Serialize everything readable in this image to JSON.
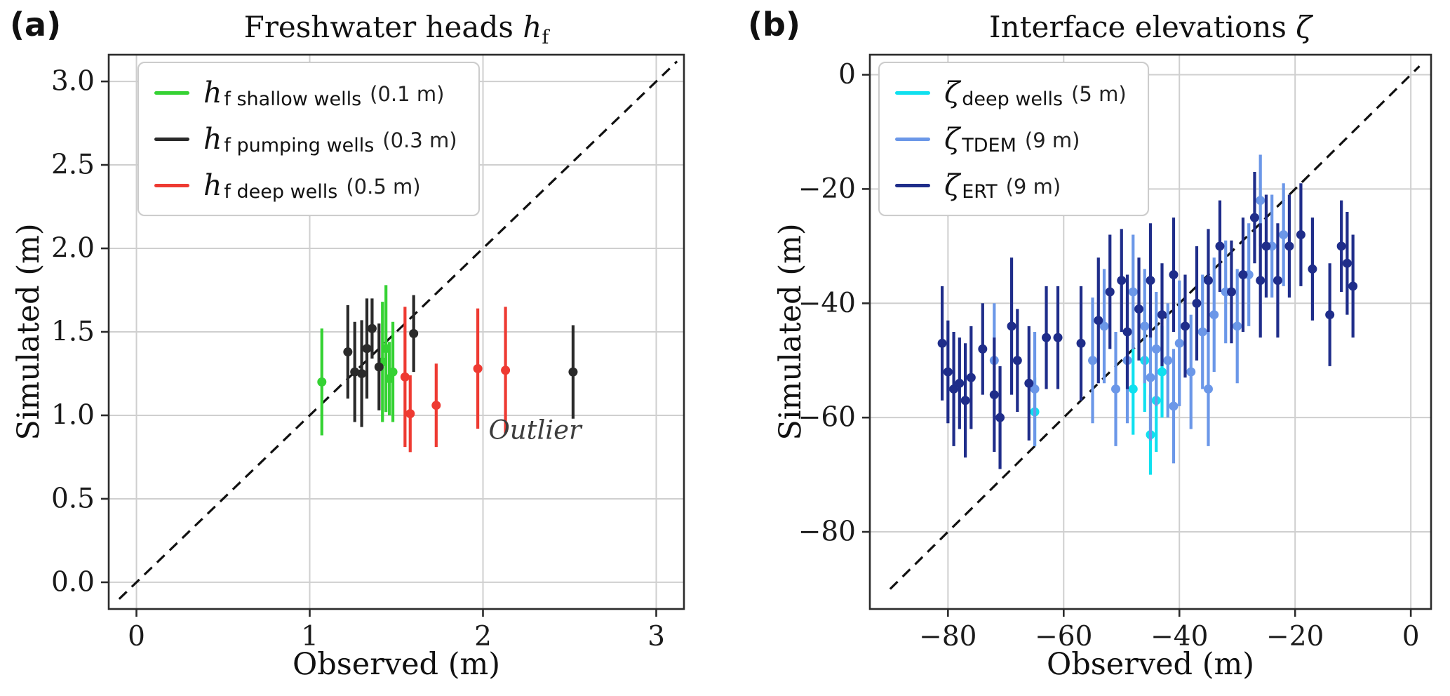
{
  "panels": [
    {
      "label": "(a)"
    },
    {
      "label": "(b)"
    }
  ],
  "chart_data": [
    {
      "type": "scatter",
      "title": "Freshwater heads h_f",
      "title_prefix": "Freshwater heads ",
      "title_symbol": "h",
      "title_sub": "f",
      "xlabel": "Observed (m)",
      "ylabel": "Simulated (m)",
      "xlim": [
        -0.16,
        3.16
      ],
      "ylim": [
        -0.16,
        3.16
      ],
      "one_to_one": [
        -0.1,
        3.12
      ],
      "grid": true,
      "legend_position": "upper-left",
      "xticks": [
        {
          "v": 0,
          "label": "0"
        },
        {
          "v": 1,
          "label": "1"
        },
        {
          "v": 2,
          "label": "2"
        },
        {
          "v": 3,
          "label": "3"
        }
      ],
      "yticks": [
        {
          "v": 0,
          "label": "0.0"
        },
        {
          "v": 0.5,
          "label": "0.5"
        },
        {
          "v": 1,
          "label": "1.0"
        },
        {
          "v": 1.5,
          "label": "1.5"
        },
        {
          "v": 2,
          "label": "2.0"
        },
        {
          "v": 2.5,
          "label": "2.5"
        },
        {
          "v": 3,
          "label": "3.0"
        }
      ],
      "annotation": {
        "text": "Outlier",
        "x": 2.3,
        "y": 0.86
      },
      "series": [
        {
          "name": "h_f shallow wells",
          "symbol": "h",
          "sub": "f shallow wells",
          "suffix": "(0.1 m)",
          "color": "#35d233",
          "points": [
            [
              1.07,
              1.2,
              0.32
            ],
            [
              1.42,
              1.32,
              0.36
            ],
            [
              1.44,
              1.4,
              0.38
            ],
            [
              1.46,
              1.22,
              0.22
            ],
            [
              1.48,
              1.26,
              0.3
            ]
          ]
        },
        {
          "name": "h_f pumping wells",
          "symbol": "h",
          "sub": "f pumping wells",
          "suffix": "(0.3 m)",
          "color": "#2a2a2a",
          "points": [
            [
              1.22,
              1.38,
              0.28
            ],
            [
              1.26,
              1.26,
              0.3
            ],
            [
              1.3,
              1.25,
              0.32
            ],
            [
              1.33,
              1.4,
              0.3
            ],
            [
              1.36,
              1.52,
              0.18
            ],
            [
              1.4,
              1.29,
              0.26
            ],
            [
              1.6,
              1.49,
              0.23
            ],
            [
              2.52,
              1.26,
              0.28
            ]
          ]
        },
        {
          "name": "h_f deep wells",
          "symbol": "h",
          "sub": "f deep wells",
          "suffix": "(0.5 m)",
          "color": "#ee3a32",
          "points": [
            [
              1.55,
              1.23,
              0.42
            ],
            [
              1.58,
              1.01,
              0.23
            ],
            [
              1.73,
              1.06,
              0.25
            ],
            [
              1.97,
              1.28,
              0.36
            ],
            [
              2.13,
              1.27,
              0.38
            ]
          ]
        }
      ]
    },
    {
      "type": "scatter",
      "title": "Interface elevations ζ",
      "title_prefix": "Interface elevations ",
      "title_symbol": "ζ",
      "title_sub": "",
      "xlabel": "Observed (m)",
      "ylabel": "Simulated (m)",
      "xlim": [
        -93.5,
        3.5
      ],
      "ylim": [
        -93.5,
        3.5
      ],
      "one_to_one": [
        -90,
        1.5
      ],
      "grid": true,
      "legend_position": "upper-left",
      "xticks": [
        {
          "v": -80,
          "label": "−80"
        },
        {
          "v": -60,
          "label": "−60"
        },
        {
          "v": -40,
          "label": "−40"
        },
        {
          "v": -20,
          "label": "−20"
        },
        {
          "v": 0,
          "label": "0"
        }
      ],
      "yticks": [
        {
          "v": 0,
          "label": "0"
        },
        {
          "v": -20,
          "label": "−20"
        },
        {
          "v": -40,
          "label": "−40"
        },
        {
          "v": -60,
          "label": "−60"
        },
        {
          "v": -80,
          "label": "−80"
        }
      ],
      "annotation": null,
      "series": [
        {
          "name": "zeta deep wells",
          "symbol": "ζ",
          "sub": "deep wells",
          "suffix": "(5 m)",
          "color": "#0fe0ef",
          "points": [
            [
              -65,
              -59,
              6
            ],
            [
              -48,
              -55,
              8
            ],
            [
              -46,
              -50,
              9
            ],
            [
              -44,
              -57,
              9
            ],
            [
              -43,
              -52,
              8
            ],
            [
              -45,
              -63,
              7
            ]
          ]
        },
        {
          "name": "zeta TDEM",
          "symbol": "ζ",
          "sub": "TDEM",
          "suffix": "(9 m)",
          "color": "#6b97e8",
          "points": [
            [
              -72,
              -50,
              10
            ],
            [
              -65,
              -55,
              10
            ],
            [
              -55,
              -50,
              11
            ],
            [
              -53,
              -44,
              10
            ],
            [
              -51,
              -55,
              10
            ],
            [
              -49,
              -50,
              11
            ],
            [
              -48,
              -38,
              10
            ],
            [
              -46,
              -44,
              10
            ],
            [
              -45,
              -53,
              11
            ],
            [
              -44,
              -48,
              10
            ],
            [
              -42,
              -50,
              10
            ],
            [
              -41,
              -58,
              10
            ],
            [
              -40,
              -47,
              11
            ],
            [
              -38,
              -52,
              10
            ],
            [
              -36,
              -45,
              10
            ],
            [
              -35,
              -55,
              10
            ],
            [
              -34,
              -42,
              10
            ],
            [
              -32,
              -38,
              9
            ],
            [
              -30,
              -44,
              10
            ],
            [
              -28,
              -35,
              9
            ],
            [
              -26,
              -22,
              8
            ],
            [
              -24,
              -30,
              9
            ],
            [
              -22,
              -28,
              9
            ]
          ]
        },
        {
          "name": "zeta ERT",
          "symbol": "ζ",
          "sub": "ERT",
          "suffix": "(9 m)",
          "color": "#1f2d8a",
          "points": [
            [
              -81,
              -47,
              10
            ],
            [
              -80,
              -52,
              9
            ],
            [
              -79,
              -55,
              10
            ],
            [
              -78,
              -54,
              8
            ],
            [
              -77,
              -57,
              10
            ],
            [
              -76,
              -53,
              9
            ],
            [
              -74,
              -48,
              8
            ],
            [
              -72,
              -56,
              10
            ],
            [
              -71,
              -60,
              9
            ],
            [
              -69,
              -44,
              12
            ],
            [
              -68,
              -50,
              9
            ],
            [
              -66,
              -54,
              10
            ],
            [
              -63,
              -46,
              9
            ],
            [
              -61,
              -46,
              9
            ],
            [
              -57,
              -47,
              10
            ],
            [
              -54,
              -43,
              11
            ],
            [
              -52,
              -38,
              10
            ],
            [
              -50,
              -36,
              9
            ],
            [
              -49,
              -45,
              10
            ],
            [
              -47,
              -41,
              9
            ],
            [
              -45,
              -36,
              10
            ],
            [
              -43,
              -42,
              9
            ],
            [
              -41,
              -35,
              10
            ],
            [
              -39,
              -44,
              9
            ],
            [
              -37,
              -40,
              10
            ],
            [
              -35,
              -36,
              9
            ],
            [
              -33,
              -30,
              8
            ],
            [
              -31,
              -38,
              9
            ],
            [
              -29,
              -35,
              10
            ],
            [
              -27,
              -25,
              8
            ],
            [
              -26,
              -36,
              10
            ],
            [
              -25,
              -30,
              9
            ],
            [
              -23,
              -36,
              10
            ],
            [
              -21,
              -30,
              9
            ],
            [
              -19,
              -28,
              9
            ],
            [
              -17,
              -34,
              9
            ],
            [
              -14,
              -42,
              9
            ],
            [
              -12,
              -30,
              8
            ],
            [
              -11,
              -33,
              9
            ],
            [
              -10,
              -37,
              9
            ]
          ]
        }
      ]
    }
  ]
}
